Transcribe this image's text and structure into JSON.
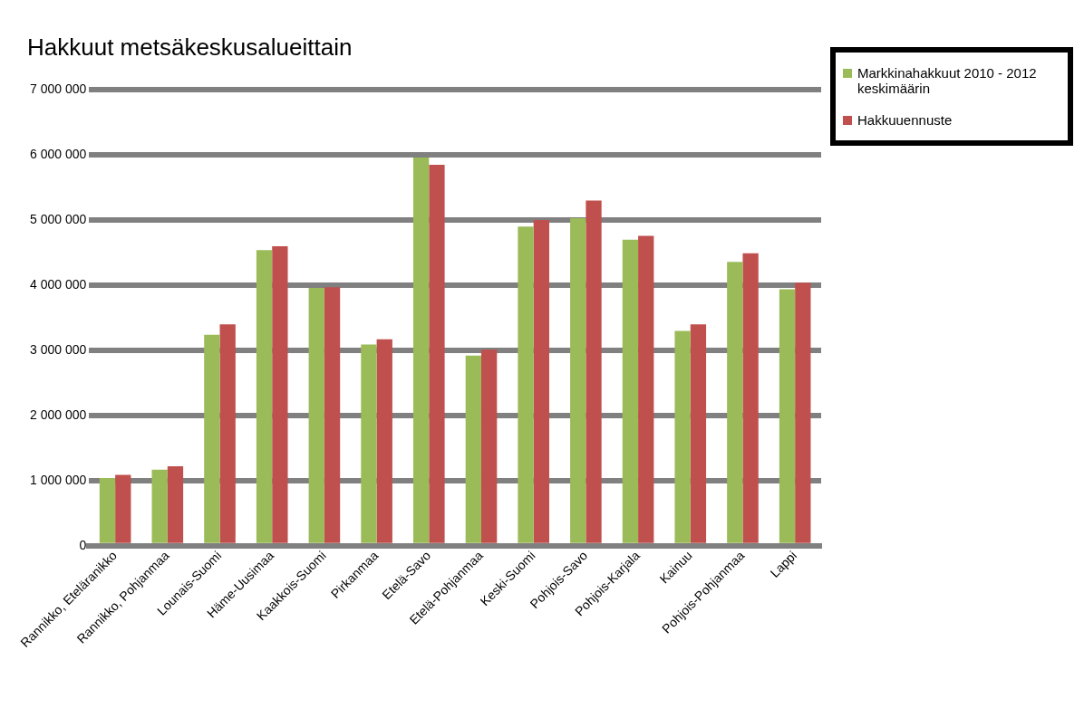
{
  "chart_data": {
    "type": "bar",
    "title": "Hakkuut metsäkeskusalueittain",
    "categories": [
      "Rannikko, Eteläranikko",
      "Rannikko, Pohjanmaa",
      "Lounais-Suomi",
      "Häme-Uusimaa",
      "Kaakkois-Suomi",
      "Pirkanmaa",
      "Etelä-Savo",
      "Etelä-Pohjanmaa",
      "Keski-Suomi",
      "Pohjois-Savo",
      "Pohjois-Karjala",
      "Kainuu",
      "Pohjois-Pohjanmaa",
      "Lappi"
    ],
    "series": [
      {
        "name": "Markkinahakkuut 2010 - 2012 keskimäärin",
        "color": "#9bbb59",
        "values": [
          1040000,
          1170000,
          3240000,
          4540000,
          3960000,
          3090000,
          5960000,
          2920000,
          4900000,
          5030000,
          4700000,
          3300000,
          4360000,
          3940000
        ]
      },
      {
        "name": "Hakkuuennuste",
        "color": "#c0504d",
        "values": [
          1090000,
          1220000,
          3400000,
          4600000,
          3970000,
          3170000,
          5850000,
          3010000,
          5000000,
          5300000,
          4760000,
          3400000,
          4490000,
          4040000
        ]
      }
    ],
    "ylim": [
      0,
      7000000
    ],
    "yticks": [
      {
        "value": 0,
        "label": "0"
      },
      {
        "value": 1000000,
        "label": "1 000 000"
      },
      {
        "value": 2000000,
        "label": "2 000 000"
      },
      {
        "value": 3000000,
        "label": "3 000 000"
      },
      {
        "value": 4000000,
        "label": "4 000 000"
      },
      {
        "value": 5000000,
        "label": "5 000 000"
      },
      {
        "value": 6000000,
        "label": "6 000 000"
      },
      {
        "value": 7000000,
        "label": "7 000 000"
      }
    ],
    "grid": "y",
    "legend": "top right"
  }
}
